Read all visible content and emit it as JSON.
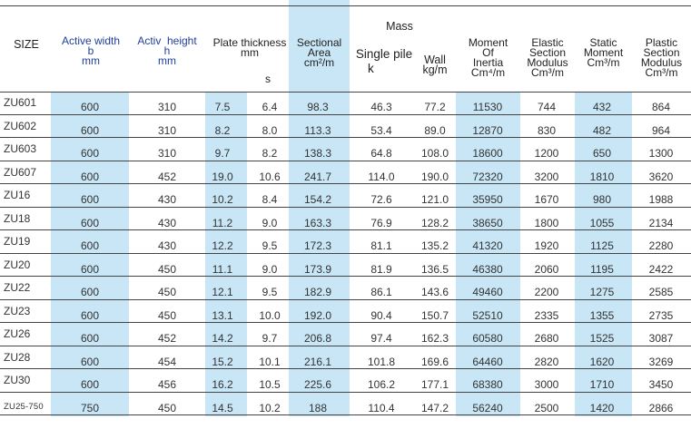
{
  "table": {
    "headers": {
      "size": "SIZE",
      "active_width": [
        "Active width",
        "b",
        "mm"
      ],
      "active_height": [
        "Activ  height",
        "h",
        "mm"
      ],
      "plate_thickness": [
        "Plate thickness",
        "mm"
      ],
      "plate_thickness_s": "s",
      "sectional_area": [
        "Sectional",
        "Area",
        "cm²/m"
      ],
      "mass": "Mass",
      "single_pile": [
        "Single pile",
        "k"
      ],
      "wall": [
        "Wall",
        "kg/m"
      ],
      "moment_of_inertia": [
        "Moment",
        "Of",
        "Inertia",
        "Cm⁴/m"
      ],
      "elastic_section_modulus": [
        "Elastic",
        "Section",
        "Modulus",
        "Cm³/m"
      ],
      "static_moment": [
        "Static",
        "Moment",
        "Cm³/m"
      ],
      "plastic_section_modulus": [
        "Plastic",
        "Section",
        "Modulus",
        "Cm³/m"
      ]
    },
    "rows": [
      {
        "size": "ZU601",
        "width": "600",
        "height": "310",
        "t": "7.5",
        "s": "6.4",
        "area": "98.3",
        "single": "46.3",
        "wall": "77.2",
        "inertia": "11530",
        "elastic": "744",
        "static": "432",
        "plastic": "864"
      },
      {
        "size": "ZU602",
        "width": "600",
        "height": "310",
        "t": "8.2",
        "s": "8.0",
        "area": "113.3",
        "single": "53.4",
        "wall": "89.0",
        "inertia": "12870",
        "elastic": "830",
        "static": "482",
        "plastic": "964"
      },
      {
        "size": "ZU603",
        "width": "600",
        "height": "310",
        "t": "9.7",
        "s": "8.2",
        "area": "138.3",
        "single": "64.8",
        "wall": "108.0",
        "inertia": "18600",
        "elastic": "1200",
        "static": "650",
        "plastic": "1300"
      },
      {
        "size": "ZU607",
        "width": "600",
        "height": "452",
        "t": "19.0",
        "s": "10.6",
        "area": "241.7",
        "single": "114.0",
        "wall": "190.0",
        "inertia": "72320",
        "elastic": "3200",
        "static": "1810",
        "plastic": "3620"
      },
      {
        "size": "ZU16",
        "width": "600",
        "height": "430",
        "t": "10.2",
        "s": "8.4",
        "area": "154.2",
        "single": "72.6",
        "wall": "121.0",
        "inertia": "35950",
        "elastic": "1670",
        "static": "980",
        "plastic": "1988"
      },
      {
        "size": "ZU18",
        "width": "600",
        "height": "430",
        "t": "11.2",
        "s": "9.0",
        "area": "163.3",
        "single": "76.9",
        "wall": "128.2",
        "inertia": "38650",
        "elastic": "1800",
        "static": "1055",
        "plastic": "2134"
      },
      {
        "size": "ZU19",
        "width": "600",
        "height": "430",
        "t": "12.2",
        "s": "9.5",
        "area": "172.3",
        "single": "81.1",
        "wall": "135.2",
        "inertia": "41320",
        "elastic": "1920",
        "static": "1125",
        "plastic": "2280"
      },
      {
        "size": "ZU20",
        "width": "600",
        "height": "450",
        "t": "11.1",
        "s": "9.0",
        "area": "173.9",
        "single": "81.9",
        "wall": "136.5",
        "inertia": "46380",
        "elastic": "2060",
        "static": "1195",
        "plastic": "2422"
      },
      {
        "size": "ZU22",
        "width": "600",
        "height": "450",
        "t": "12.1",
        "s": "9.5",
        "area": "182.9",
        "single": "86.1",
        "wall": "143.6",
        "inertia": "49460",
        "elastic": "2200",
        "static": "1275",
        "plastic": "2585"
      },
      {
        "size": "ZU23",
        "width": "600",
        "height": "450",
        "t": "13.1",
        "s": "10.0",
        "area": "192.0",
        "single": "90.4",
        "wall": "150.7",
        "inertia": "52510",
        "elastic": "2335",
        "static": "1355",
        "plastic": "2735"
      },
      {
        "size": "ZU26",
        "width": "600",
        "height": "452",
        "t": "14.2",
        "s": "9.7",
        "area": "206.8",
        "single": "97.4",
        "wall": "162.3",
        "inertia": "60580",
        "elastic": "2680",
        "static": "1525",
        "plastic": "3087"
      },
      {
        "size": "ZU28",
        "width": "600",
        "height": "454",
        "t": "15.2",
        "s": "10.1",
        "area": "216.1",
        "single": "101.8",
        "wall": "169.6",
        "inertia": "64460",
        "elastic": "2820",
        "static": "1620",
        "plastic": "3269"
      },
      {
        "size": "ZU30",
        "width": "600",
        "height": "456",
        "t": "16.2",
        "s": "10.5",
        "area": "225.6",
        "single": "106.2",
        "wall": "177.1",
        "inertia": "68380",
        "elastic": "3000",
        "static": "1710",
        "plastic": "3450"
      },
      {
        "size": "ZU25-750",
        "width": "750",
        "height": "450",
        "t": "14.5",
        "s": "10.2",
        "area": "188",
        "single": "110.4",
        "wall": "147.2",
        "inertia": "56240",
        "elastic": "2500",
        "static": "1420",
        "plastic": "2866"
      }
    ]
  }
}
